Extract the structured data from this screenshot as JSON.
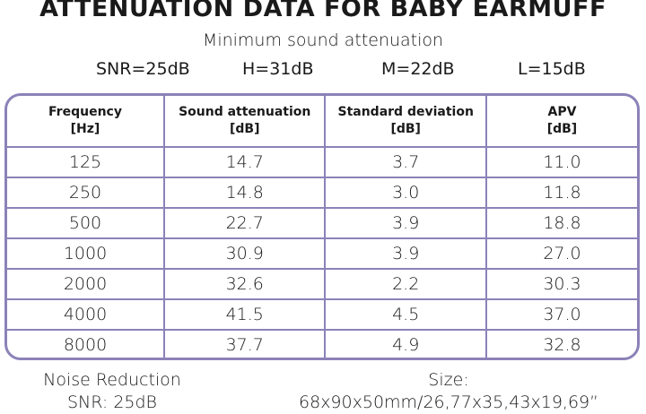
{
  "header": {
    "title": "ATTENUATION DATA FOR BABY EARMUFF",
    "subtitle": "Minimum sound attenuation",
    "ratings": [
      "SNR=25dB",
      "H=31dB",
      "M=22dB",
      "L=15dB"
    ]
  },
  "table": {
    "headers": [
      [
        "Frequency",
        "[Hz]"
      ],
      [
        "Sound attenuation",
        "[dB]"
      ],
      [
        "Standard deviation",
        "[dB]"
      ],
      [
        "APV",
        "[dB]"
      ]
    ],
    "rows": [
      [
        "125",
        "14.7",
        "3.7",
        "11.0"
      ],
      [
        "250",
        "14.8",
        "3.0",
        "11.8"
      ],
      [
        "500",
        "22.7",
        "3.9",
        "18.8"
      ],
      [
        "1000",
        "30.9",
        "3.9",
        "27.0"
      ],
      [
        "2000",
        "32.6",
        "2.2",
        "30.3"
      ],
      [
        "4000",
        "41.5",
        "4.5",
        "37.0"
      ],
      [
        "8000",
        "37.7",
        "4.9",
        "32.8"
      ]
    ]
  },
  "footer": {
    "noise_reduction": [
      "Noise Reduction",
      "SNR: 25dB"
    ],
    "size": [
      "Size:",
      "68x90x50mm/26,77x35,43x19,69”"
    ]
  }
}
